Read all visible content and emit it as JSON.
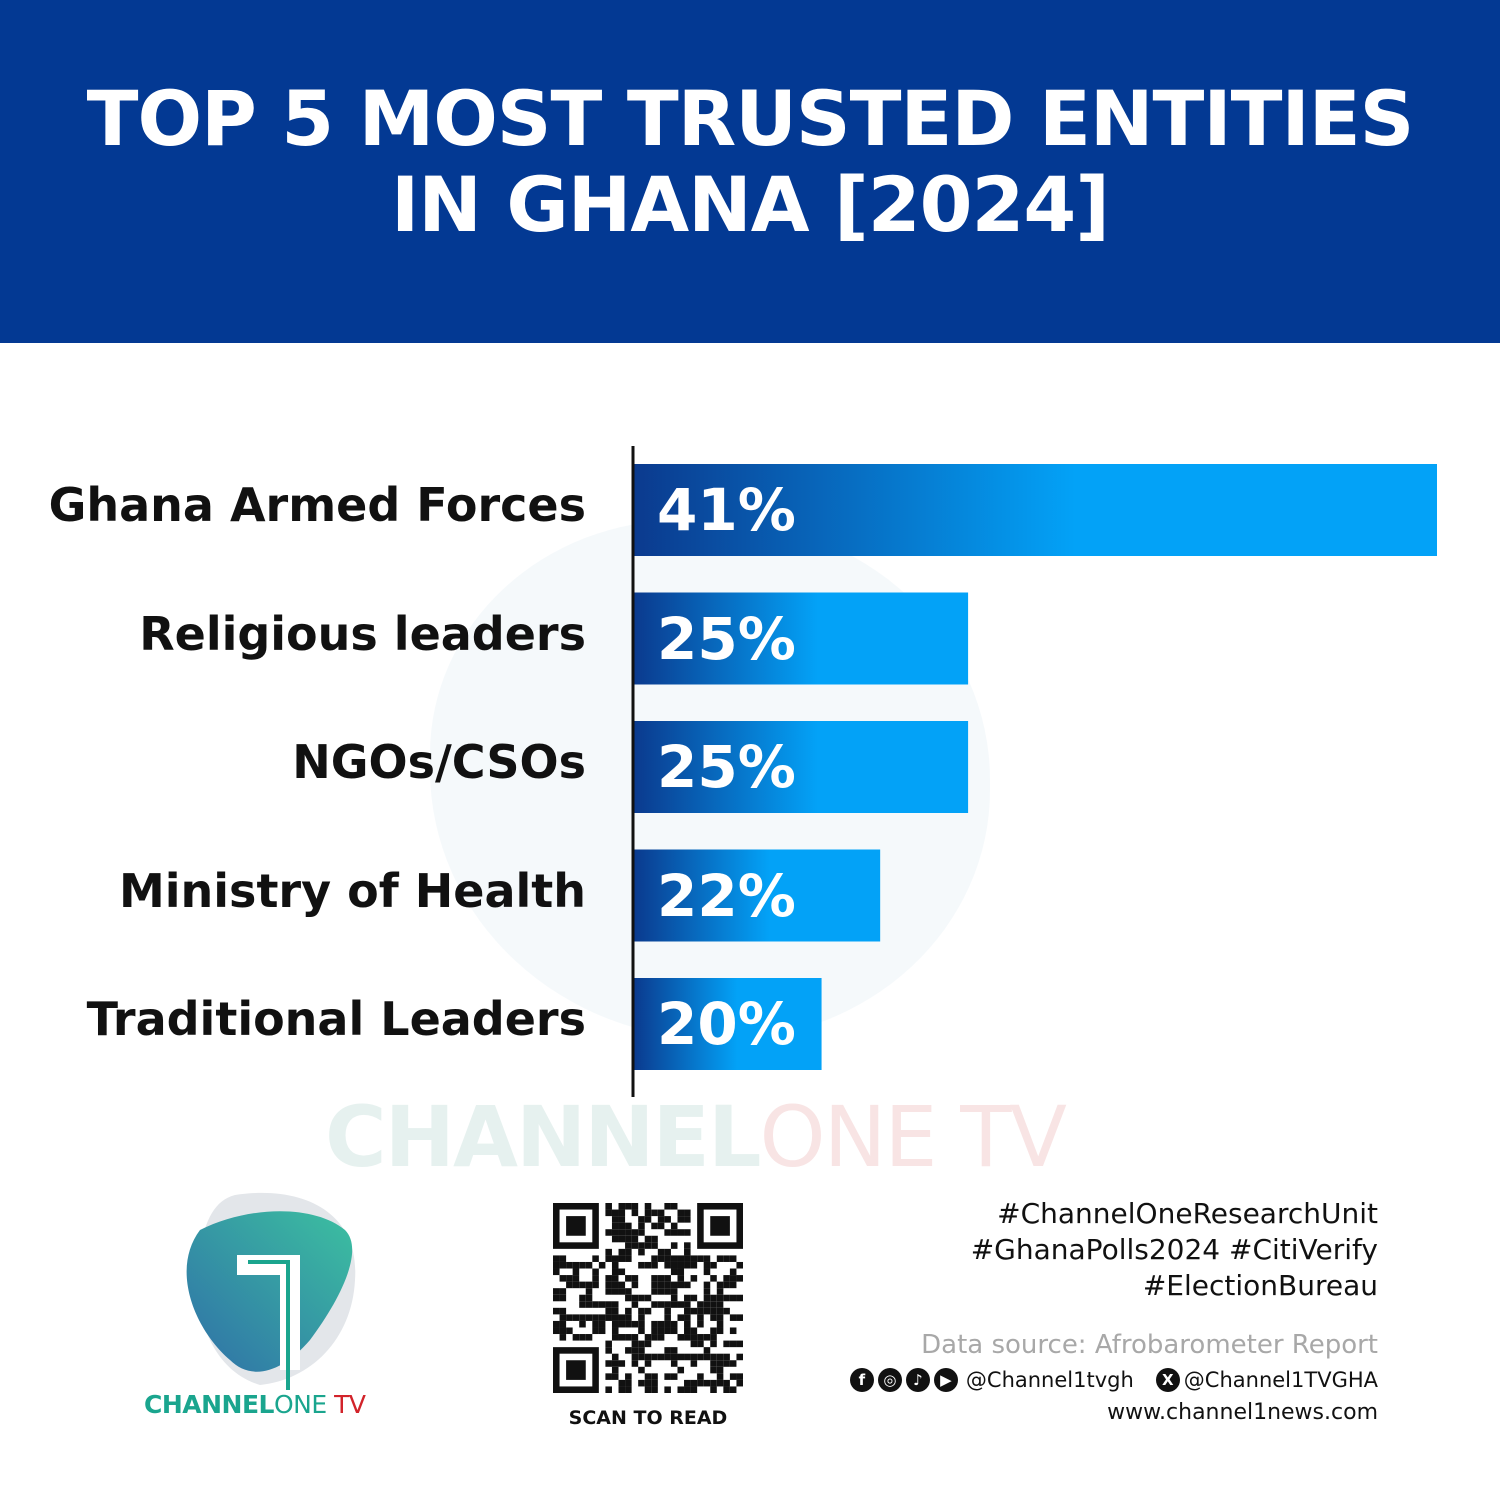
{
  "header": {
    "title_line1": "TOP 5 MOST TRUSTED ENTITIES",
    "title_line2": "IN GHANA [2024]"
  },
  "chart_data": {
    "type": "bar",
    "orientation": "horizontal",
    "title": "TOP 5 MOST TRUSTED ENTITIES IN GHANA [2024]",
    "categories": [
      "Ghana Armed Forces",
      "Religious leaders",
      "NGOs/CSOs",
      "Ministry of Health",
      "Traditional Leaders"
    ],
    "values": [
      41,
      25,
      25,
      22,
      20
    ],
    "data_labels": [
      "41%",
      "25%",
      "25%",
      "22%",
      "20%"
    ],
    "unit": "%",
    "xlim": [
      13.6,
      41
    ],
    "grid": false,
    "bar_gradient": [
      "#0b3a8e",
      "#03a2f7"
    ]
  },
  "watermark": {
    "part1": "CHANNEL",
    "part2": "ONE TV"
  },
  "footer": {
    "brand": {
      "part1": "CHANNEL",
      "part2": "ONE",
      "part3": " TV"
    },
    "scan_label": "SCAN TO READ",
    "hashtags": [
      "#ChannelOneResearchUnit",
      "#GhanaPolls2024 #CitiVerify",
      "#ElectionBureau"
    ],
    "source": "Data source: Afrobarometer Report",
    "social_handle": "@Channel1tvgh",
    "x_handle": "@Channel1TVGHA",
    "website": "www.channel1news.com",
    "icons": [
      "facebook-icon",
      "instagram-icon",
      "tiktok-icon",
      "youtube-icon",
      "x-icon"
    ]
  },
  "colors": {
    "header": "#033993",
    "brand_teal": "#1aa58e",
    "brand_red": "#d2232a"
  }
}
